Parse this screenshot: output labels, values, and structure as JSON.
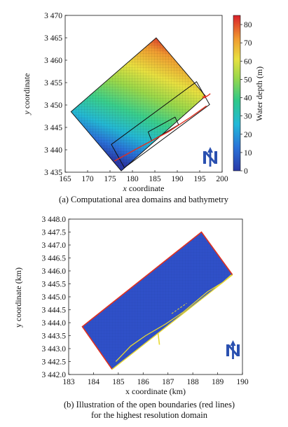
{
  "chart_data": [
    {
      "type": "heatmap",
      "xlabel_italic": "x",
      "xlabel_rest": "coordinate",
      "ylabel_italic": "y",
      "ylabel_rest": "coordinate",
      "xlim": [
        165,
        200
      ],
      "ylim": [
        3435,
        3470
      ],
      "x_ticks": [
        "165",
        "170",
        "175",
        "180",
        "185",
        "190",
        "195",
        "200"
      ],
      "y_ticks": [
        "3 435",
        "3 440",
        "3 445",
        "3 450",
        "3 455",
        "3 460",
        "3 465",
        "3 470"
      ],
      "domain_corners": [
        [
          166.3,
          3448.5
        ],
        [
          185.3,
          3465
        ],
        [
          196.3,
          3452
        ],
        [
          177.5,
          3435.3
        ]
      ],
      "nested_domain_1": [
        [
          175.3,
          3441.2
        ],
        [
          194.3,
          3455.2
        ],
        [
          197.2,
          3450.1
        ],
        [
          178.2,
          3436.0
        ]
      ],
      "nested_domain_2": [
        [
          183.5,
          3444.0
        ],
        [
          189.5,
          3447.3
        ],
        [
          190.3,
          3445.6
        ],
        [
          184.3,
          3442.0
        ]
      ],
      "river_line": [
        [
          176.0,
          3437.5
        ],
        [
          182,
          3440.8
        ],
        [
          188,
          3444.0
        ],
        [
          193,
          3447.3
        ],
        [
          196.5,
          3449.8
        ]
      ],
      "colorbar": {
        "label": "Water depth (m)",
        "range": [
          0,
          85
        ],
        "ticks": [
          "0",
          "10",
          "20",
          "30",
          "40",
          "50",
          "60",
          "70",
          "80"
        ]
      },
      "north_label": "N",
      "caption": "(a) Computational area domains and bathymetry"
    },
    {
      "type": "scatter",
      "xlabel": "x coordinate (km)",
      "ylabel": "y coordinate (km)",
      "xlim": [
        183,
        190
      ],
      "ylim": [
        3442.0,
        3448.0
      ],
      "x_ticks": [
        "183",
        "184",
        "185",
        "186",
        "187",
        "188",
        "189",
        "190"
      ],
      "y_ticks": [
        "3 442.0",
        "3 442.5",
        "3 443.0",
        "3 443.5",
        "3 444.0",
        "3 444.5",
        "3 445.0",
        "3 445.5",
        "3 446.0",
        "3 446.5",
        "3 447.0",
        "3 447.5",
        "3 448.0"
      ],
      "domain_corners": [
        [
          183.55,
          3443.85
        ],
        [
          188.35,
          3447.5
        ],
        [
          189.6,
          3445.85
        ],
        [
          184.75,
          3442.2
        ]
      ],
      "open_boundary_color": "#e03020",
      "shore_line_color": "#e8d830",
      "river_line": [
        [
          184.9,
          3442.5
        ],
        [
          185.5,
          3443.1
        ],
        [
          186.1,
          3443.5
        ],
        [
          186.9,
          3443.95
        ],
        [
          187.6,
          3444.4
        ],
        [
          188.1,
          3444.8
        ],
        [
          188.6,
          3445.2
        ],
        [
          189.2,
          3445.55
        ],
        [
          189.55,
          3445.85
        ]
      ],
      "dashed_line": [
        [
          187.15,
          3444.35
        ],
        [
          187.75,
          3444.75
        ]
      ],
      "north_label": "N",
      "caption_line1": "(b) Illustration of the open boundaries (red lines)",
      "caption_line2": "for the highest resolution domain"
    }
  ]
}
